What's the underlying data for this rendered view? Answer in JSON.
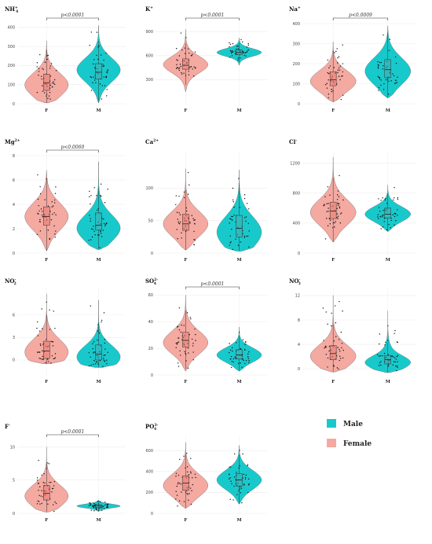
{
  "colors": {
    "female": "#F4A9A1",
    "male": "#18C9CC",
    "box_female": "#E8786F",
    "box_male": "#3FAFB3"
  },
  "legend": [
    {
      "label": "Male",
      "color": "#18C9CC"
    },
    {
      "label": "Female",
      "color": "#F4A9A1"
    }
  ],
  "chart_data": [
    {
      "type": "violin",
      "title": "NH",
      "sub": "4",
      "sup": "+",
      "pvalue": "p<0.0001",
      "ylim": [
        0,
        420
      ],
      "yticks": [
        0,
        100,
        200,
        300,
        400
      ],
      "categories": [
        "F",
        "M"
      ],
      "groups": [
        {
          "name": "F",
          "min": 5,
          "q1": 70,
          "median": 110,
          "q3": 155,
          "max": 330,
          "mode": 95
        },
        {
          "name": "M",
          "min": 5,
          "q1": 130,
          "median": 165,
          "q3": 210,
          "max": 410,
          "mode": 180
        }
      ]
    },
    {
      "type": "violin",
      "title": "K",
      "sub": "",
      "sup": "+",
      "pvalue": "p<0.0001",
      "ylim": [
        0,
        1000
      ],
      "yticks": [
        300,
        600,
        900
      ],
      "categories": [
        "F",
        "M"
      ],
      "groups": [
        {
          "name": "F",
          "min": 150,
          "q1": 430,
          "median": 480,
          "q3": 560,
          "max": 930,
          "mode": 490
        },
        {
          "name": "M",
          "min": 480,
          "q1": 610,
          "median": 640,
          "q3": 670,
          "max": 820,
          "mode": 640
        }
      ]
    },
    {
      "type": "violin",
      "title": "Na",
      "sub": "",
      "sup": "+",
      "pvalue": "p<0.0009",
      "ylim": [
        0,
        400
      ],
      "yticks": [
        0,
        100,
        200,
        300,
        400
      ],
      "categories": [
        "F",
        "M"
      ],
      "groups": [
        {
          "name": "F",
          "min": 10,
          "q1": 90,
          "median": 120,
          "q3": 160,
          "max": 310,
          "mode": 110
        },
        {
          "name": "M",
          "min": 30,
          "q1": 130,
          "median": 170,
          "q3": 220,
          "max": 390,
          "mode": 160
        }
      ]
    },
    {
      "type": "violin",
      "title": "Mg",
      "sub": "",
      "sup": "2+",
      "pvalue": "p<0.0060",
      "ylim": [
        0,
        8
      ],
      "yticks": [
        0,
        2,
        4,
        6,
        8
      ],
      "categories": [
        "F",
        "M"
      ],
      "groups": [
        {
          "name": "F",
          "min": 0.2,
          "q1": 2.3,
          "median": 3.0,
          "q3": 3.8,
          "max": 6.8,
          "mode": 3.0
        },
        {
          "name": "M",
          "min": 0.3,
          "q1": 1.9,
          "median": 2.3,
          "q3": 3.3,
          "max": 7.5,
          "mode": 2.0
        }
      ]
    },
    {
      "type": "violin",
      "title": "Ca",
      "sub": "",
      "sup": "2+",
      "pvalue": "",
      "ylim": [
        0,
        150
      ],
      "yticks": [
        0,
        50,
        100
      ],
      "categories": [
        "F",
        "M"
      ],
      "groups": [
        {
          "name": "F",
          "min": 5,
          "q1": 35,
          "median": 45,
          "q3": 60,
          "max": 130,
          "mode": 45
        },
        {
          "name": "M",
          "min": 3,
          "q1": 25,
          "median": 38,
          "q3": 58,
          "max": 128,
          "mode": 30
        }
      ]
    },
    {
      "type": "violin",
      "title": "Cl",
      "sub": "",
      "sup": "-",
      "pvalue": "",
      "ylim": [
        0,
        1300
      ],
      "yticks": [
        0,
        400,
        800,
        1200
      ],
      "categories": [
        "F",
        "M"
      ],
      "groups": [
        {
          "name": "F",
          "min": 150,
          "q1": 460,
          "median": 560,
          "q3": 680,
          "max": 1280,
          "mode": 540
        },
        {
          "name": "M",
          "min": 290,
          "q1": 470,
          "median": 520,
          "q3": 600,
          "max": 910,
          "mode": 520
        }
      ]
    },
    {
      "type": "violin",
      "title": "NO",
      "sub": "2",
      "sup": "-",
      "pvalue": "",
      "ylim": [
        -2,
        9
      ],
      "yticks": [
        0,
        3,
        6
      ],
      "categories": [
        "F",
        "M"
      ],
      "groups": [
        {
          "name": "F",
          "min": -0.5,
          "q1": 0.2,
          "median": 1.2,
          "q3": 2.5,
          "max": 8.8,
          "mode": 1.0
        },
        {
          "name": "M",
          "min": -1.0,
          "q1": 0.0,
          "median": 0.8,
          "q3": 2.0,
          "max": 8.0,
          "mode": 0.3
        }
      ]
    },
    {
      "type": "violin",
      "title": "SO",
      "sub": "4",
      "sup": "2-",
      "pvalue": "p<0.0001",
      "ylim": [
        0,
        62
      ],
      "yticks": [
        0,
        20,
        40,
        60
      ],
      "categories": [
        "F",
        "M"
      ],
      "groups": [
        {
          "name": "F",
          "min": 3,
          "q1": 21,
          "median": 26,
          "q3": 32,
          "max": 60,
          "mode": 24
        },
        {
          "name": "M",
          "min": 3,
          "q1": 12,
          "median": 15,
          "q3": 19,
          "max": 36,
          "mode": 15
        }
      ]
    },
    {
      "type": "violin",
      "title": "NO",
      "sub": "3",
      "sup": "-",
      "pvalue": "",
      "ylim": [
        -1,
        12.5
      ],
      "yticks": [
        0,
        4,
        8,
        12
      ],
      "categories": [
        "F",
        "M"
      ],
      "groups": [
        {
          "name": "F",
          "min": -0.5,
          "q1": 1.5,
          "median": 2.5,
          "q3": 3.8,
          "max": 12,
          "mode": 2.0
        },
        {
          "name": "M",
          "min": -0.6,
          "q1": 0.8,
          "median": 1.5,
          "q3": 2.2,
          "max": 9.5,
          "mode": 1.0
        }
      ]
    },
    {
      "type": "violin",
      "title": "F",
      "sub": "",
      "sup": "-",
      "pvalue": "p<0.0001",
      "ylim": [
        0,
        11
      ],
      "yticks": [
        0,
        5,
        10
      ],
      "categories": [
        "F",
        "M"
      ],
      "groups": [
        {
          "name": "F",
          "min": 0.2,
          "q1": 2.0,
          "median": 3.0,
          "q3": 4.2,
          "max": 10,
          "mode": 2.5
        },
        {
          "name": "M",
          "min": 0.3,
          "q1": 0.9,
          "median": 1.1,
          "q3": 1.3,
          "max": 2.0,
          "mode": 1.1
        }
      ]
    },
    {
      "type": "violin",
      "title": "PO",
      "sub": "4",
      "sup": "3-",
      "pvalue": "",
      "ylim": [
        0,
        700
      ],
      "yticks": [
        0,
        200,
        400,
        600
      ],
      "categories": [
        "F",
        "M"
      ],
      "groups": [
        {
          "name": "F",
          "min": 50,
          "q1": 220,
          "median": 290,
          "q3": 360,
          "max": 680,
          "mode": 260
        },
        {
          "name": "M",
          "min": 90,
          "q1": 260,
          "median": 320,
          "q3": 380,
          "max": 650,
          "mode": 320
        }
      ]
    }
  ]
}
